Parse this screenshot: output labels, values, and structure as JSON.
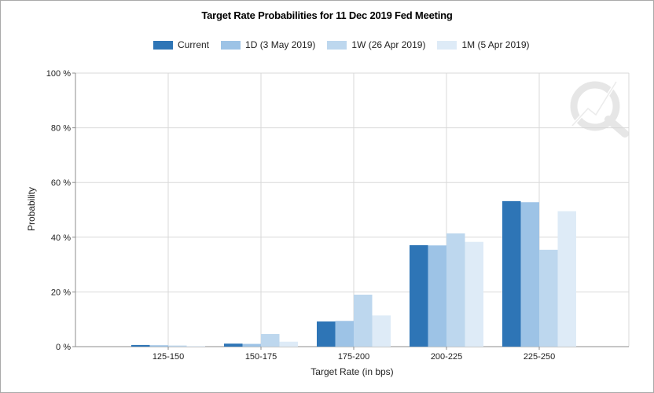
{
  "chart_data": {
    "type": "bar",
    "title": "Target Rate Probabilities for 11 Dec 2019 Fed Meeting",
    "xlabel": "Target Rate (in bps)",
    "ylabel": "Probability",
    "categories": [
      "125-150",
      "150-175",
      "175-200",
      "200-225",
      "225-250"
    ],
    "ylim": [
      0,
      100
    ],
    "yticks": [
      "0 %",
      "20 %",
      "40 %",
      "60 %",
      "80 %",
      "100 %"
    ],
    "series": [
      {
        "name": "Current",
        "color": "#2e75b6",
        "values": [
          0.6,
          1.1,
          9.2,
          37.1,
          53.2
        ]
      },
      {
        "name": "1D (3 May 2019)",
        "color": "#9dc3e6",
        "values": [
          0.5,
          1.0,
          9.4,
          37.0,
          52.8
        ]
      },
      {
        "name": "1W (26 Apr 2019)",
        "color": "#bdd7ee",
        "values": [
          0.4,
          4.6,
          19.0,
          41.4,
          35.4
        ]
      },
      {
        "name": "1M (5 Apr 2019)",
        "color": "#deebf7",
        "values": [
          0.2,
          1.8,
          11.4,
          38.3,
          49.5
        ]
      }
    ],
    "grid": true,
    "legend_position": "top"
  }
}
